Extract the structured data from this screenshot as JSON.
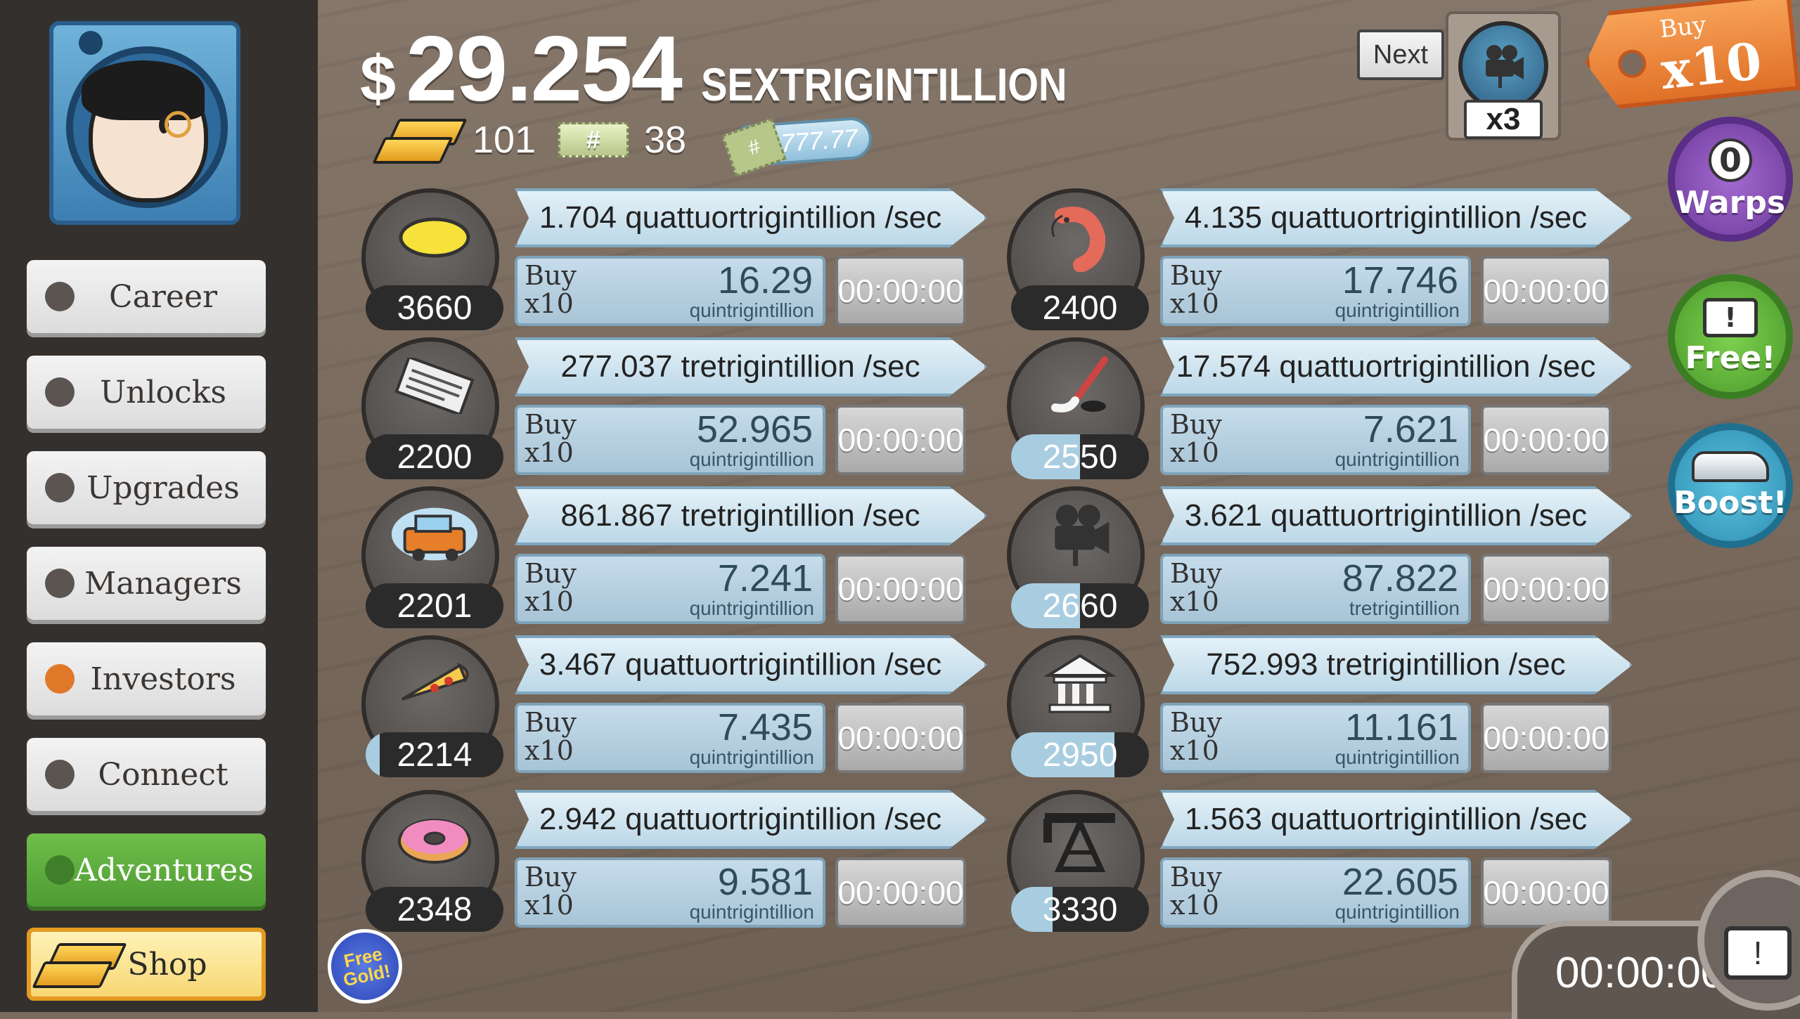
{
  "header": {
    "currency_symbol": "$",
    "money_amount": "29.254",
    "money_unit": "SEXTRIGINTILLION",
    "gold_count": "101",
    "angel_count": "38",
    "angel_symbol": "#",
    "multiplier": "x777.77"
  },
  "sidebar": {
    "items": [
      {
        "label": "Career"
      },
      {
        "label": "Unlocks"
      },
      {
        "label": "Upgrades"
      },
      {
        "label": "Managers"
      },
      {
        "label": "Investors"
      },
      {
        "label": "Connect"
      },
      {
        "label": "Adventures"
      },
      {
        "label": "Shop"
      }
    ]
  },
  "next_unlock": {
    "label": "Next",
    "reward": "x3"
  },
  "buy_mode": {
    "line1": "Buy",
    "line2": "x10"
  },
  "side_buttons": {
    "warps_count": "0",
    "warps_label": "Warps",
    "free_label": "Free!",
    "free_icon": "!",
    "boost_label": "Boost!"
  },
  "free_gold": "Free Gold!",
  "bottom_timer": "00:00:00",
  "bottom_tv_icon": "!",
  "businesses": [
    {
      "icon": "lemon-icon",
      "count": "3660",
      "progress": 0.0,
      "rate": "1.704 quattuortrigintillion /sec",
      "buy_line1": "Buy",
      "buy_line2": "x10",
      "price": "16.29",
      "price_unit": "quintrigintillion",
      "timer": "00:00:00"
    },
    {
      "icon": "newspaper-icon",
      "count": "2200",
      "progress": 0.0,
      "rate": "277.037 tretrigintillion /sec",
      "buy_line1": "Buy",
      "buy_line2": "x10",
      "price": "52.965",
      "price_unit": "quintrigintillion",
      "timer": "00:00:00"
    },
    {
      "icon": "car-wash-icon",
      "count": "2201",
      "progress": 0.0,
      "rate": "861.867 tretrigintillion /sec",
      "buy_line1": "Buy",
      "buy_line2": "x10",
      "price": "7.241",
      "price_unit": "quintrigintillion",
      "timer": "00:00:00"
    },
    {
      "icon": "pizza-icon",
      "count": "2214",
      "progress": 0.1,
      "rate": "3.467 quattuortrigintillion /sec",
      "buy_line1": "Buy",
      "buy_line2": "x10",
      "price": "7.435",
      "price_unit": "quintrigintillion",
      "timer": "00:00:00"
    },
    {
      "icon": "donut-icon",
      "count": "2348",
      "progress": 0.0,
      "rate": "2.942 quattuortrigintillion /sec",
      "buy_line1": "Buy",
      "buy_line2": "x10",
      "price": "9.581",
      "price_unit": "quintrigintillion",
      "timer": "00:00:00"
    },
    {
      "icon": "shrimp-icon",
      "count": "2400",
      "progress": 0.0,
      "rate": "4.135 quattuortrigintillion /sec",
      "buy_line1": "Buy",
      "buy_line2": "x10",
      "price": "17.746",
      "price_unit": "quintrigintillion",
      "timer": "00:00:00"
    },
    {
      "icon": "hockey-icon",
      "count": "2550",
      "progress": 0.5,
      "rate": "17.574 quattuortrigintillion /sec",
      "buy_line1": "Buy",
      "buy_line2": "x10",
      "price": "7.621",
      "price_unit": "quintrigintillion",
      "timer": "00:00:00"
    },
    {
      "icon": "movie-camera-icon",
      "count": "2660",
      "progress": 0.5,
      "rate": "3.621 quattuortrigintillion /sec",
      "buy_line1": "Buy",
      "buy_line2": "x10",
      "price": "87.822",
      "price_unit": "tretrigintillion",
      "timer": "00:00:00"
    },
    {
      "icon": "bank-icon",
      "count": "2950",
      "progress": 0.75,
      "rate": "752.993 tretrigintillion /sec",
      "buy_line1": "Buy",
      "buy_line2": "x10",
      "price": "11.161",
      "price_unit": "quintrigintillion",
      "timer": "00:00:00"
    },
    {
      "icon": "oil-rig-icon",
      "count": "3330",
      "progress": 0.3,
      "rate": "1.563 quattuortrigintillion /sec",
      "buy_line1": "Buy",
      "buy_line2": "x10",
      "price": "22.605",
      "price_unit": "quintrigintillion",
      "timer": "00:00:00"
    }
  ]
}
